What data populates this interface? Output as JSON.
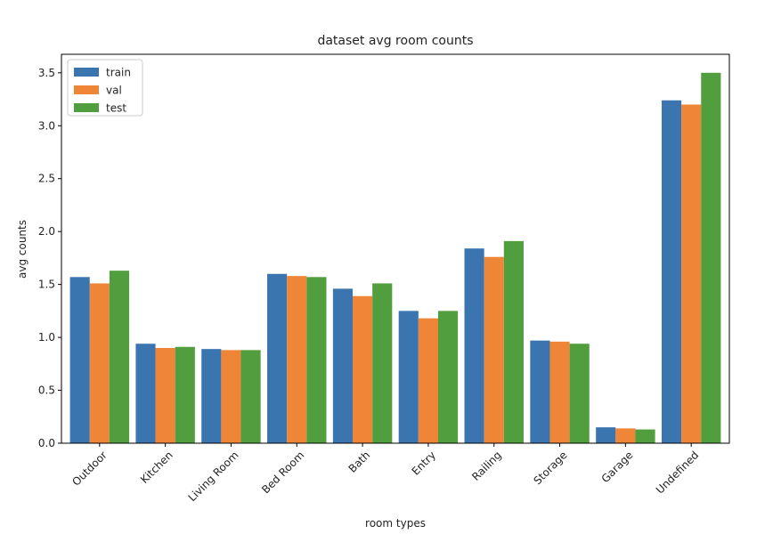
{
  "chart_data": {
    "type": "bar",
    "title": "dataset avg room counts",
    "xlabel": "room types",
    "ylabel": "avg counts",
    "categories": [
      "Outdoor",
      "Kitchen",
      "Living Room",
      "Bed Room",
      "Bath",
      "Entry",
      "Railing",
      "Storage",
      "Garage",
      "Undefined"
    ],
    "series": [
      {
        "name": "train",
        "color": "#3b75af",
        "values": [
          1.57,
          0.94,
          0.89,
          1.6,
          1.46,
          1.25,
          1.84,
          0.97,
          0.15,
          3.24
        ]
      },
      {
        "name": "val",
        "color": "#ef8536",
        "values": [
          1.51,
          0.9,
          0.88,
          1.58,
          1.39,
          1.18,
          1.76,
          0.96,
          0.14,
          3.2
        ]
      },
      {
        "name": "test",
        "color": "#519e3e",
        "values": [
          1.63,
          0.91,
          0.88,
          1.57,
          1.51,
          1.25,
          1.91,
          0.94,
          0.13,
          3.5
        ]
      }
    ],
    "ylim": [
      0,
      3.675
    ],
    "yticks": [
      0.0,
      0.5,
      1.0,
      1.5,
      2.0,
      2.5,
      3.0,
      3.5
    ],
    "ytick_labels": [
      "0.0",
      "0.5",
      "1.0",
      "1.5",
      "2.0",
      "2.5",
      "3.0",
      "3.5"
    ],
    "legend": "top-left",
    "grid": false
  }
}
